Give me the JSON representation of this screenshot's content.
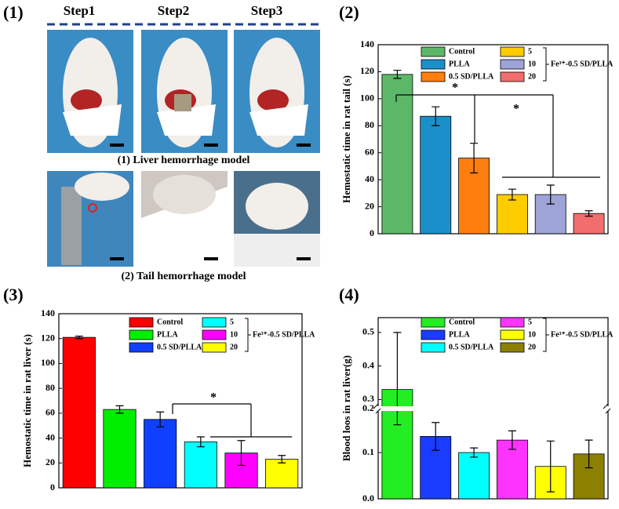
{
  "panel1": {
    "label": "(1)",
    "steps": [
      "Step1",
      "Step2",
      "Step3"
    ],
    "captions": [
      "(1) Liver hemorrhage model",
      "(2) Tail hemorrhage model"
    ]
  },
  "chart_data": [
    {
      "type": "bar",
      "panel_label": "(2)",
      "y_label": "Hemostatic time in rat tail (s)",
      "categories": [
        "Control",
        "PLLA",
        "0.5 SD/PLLA",
        "5",
        "10",
        "20"
      ],
      "legend_group": "Fe³⁺-0.5 SD/PLLA",
      "values": [
        118,
        87,
        56,
        29,
        29,
        15
      ],
      "errors": [
        3,
        7,
        11,
        4,
        7,
        2
      ],
      "colors": [
        "#5cb868",
        "#1b8fca",
        "#ff7f0e",
        "#ffcc00",
        "#9ea3d8",
        "#f26d6d"
      ],
      "ylim": [
        0,
        140
      ],
      "yticks": [
        0,
        20,
        40,
        60,
        80,
        100,
        120,
        140
      ],
      "annotations": [
        "*",
        "*"
      ]
    },
    {
      "type": "bar",
      "panel_label": "(3)",
      "y_label": "Hemostatic time in rat liver (s)",
      "categories": [
        "Control",
        "PLLA",
        "0.5 SD/PLLA",
        "5",
        "10",
        "20"
      ],
      "legend_group": "Fe³⁺-0.5 SD/PLLA",
      "values": [
        121,
        63,
        55,
        37,
        28,
        23
      ],
      "errors": [
        1,
        3,
        6,
        4,
        10,
        3
      ],
      "colors": [
        "#ff0000",
        "#00ee00",
        "#1040ff",
        "#00ffff",
        "#ff00ff",
        "#ffff00"
      ],
      "ylim": [
        0,
        140
      ],
      "yticks": [
        0,
        20,
        40,
        60,
        80,
        100,
        120,
        140
      ],
      "annotations": [
        "*"
      ]
    },
    {
      "type": "bar",
      "panel_label": "(4)",
      "y_label": "Blood loos in rat liver(g)",
      "categories": [
        "Control",
        "PLLA",
        "0.5 SD/PLLA",
        "5",
        "10",
        "20"
      ],
      "legend_group": "Fe³⁺-0.5 SD/PLLA",
      "values": [
        0.33,
        0.135,
        0.1,
        0.127,
        0.07,
        0.097
      ],
      "errors": [
        0.17,
        0.03,
        0.01,
        0.02,
        0.055,
        0.03
      ],
      "colors": [
        "#22ee22",
        "#1a3cff",
        "#00ffff",
        "#ff33ff",
        "#ffff00",
        "#8b8000"
      ],
      "ylim": [
        0,
        0.53
      ],
      "ybreak": [
        0.19,
        0.28
      ],
      "yticks": [
        {
          "value": 0,
          "label": "0.0"
        },
        0.1,
        0.2,
        0.3,
        0.4,
        0.5
      ],
      "annotations": []
    }
  ]
}
